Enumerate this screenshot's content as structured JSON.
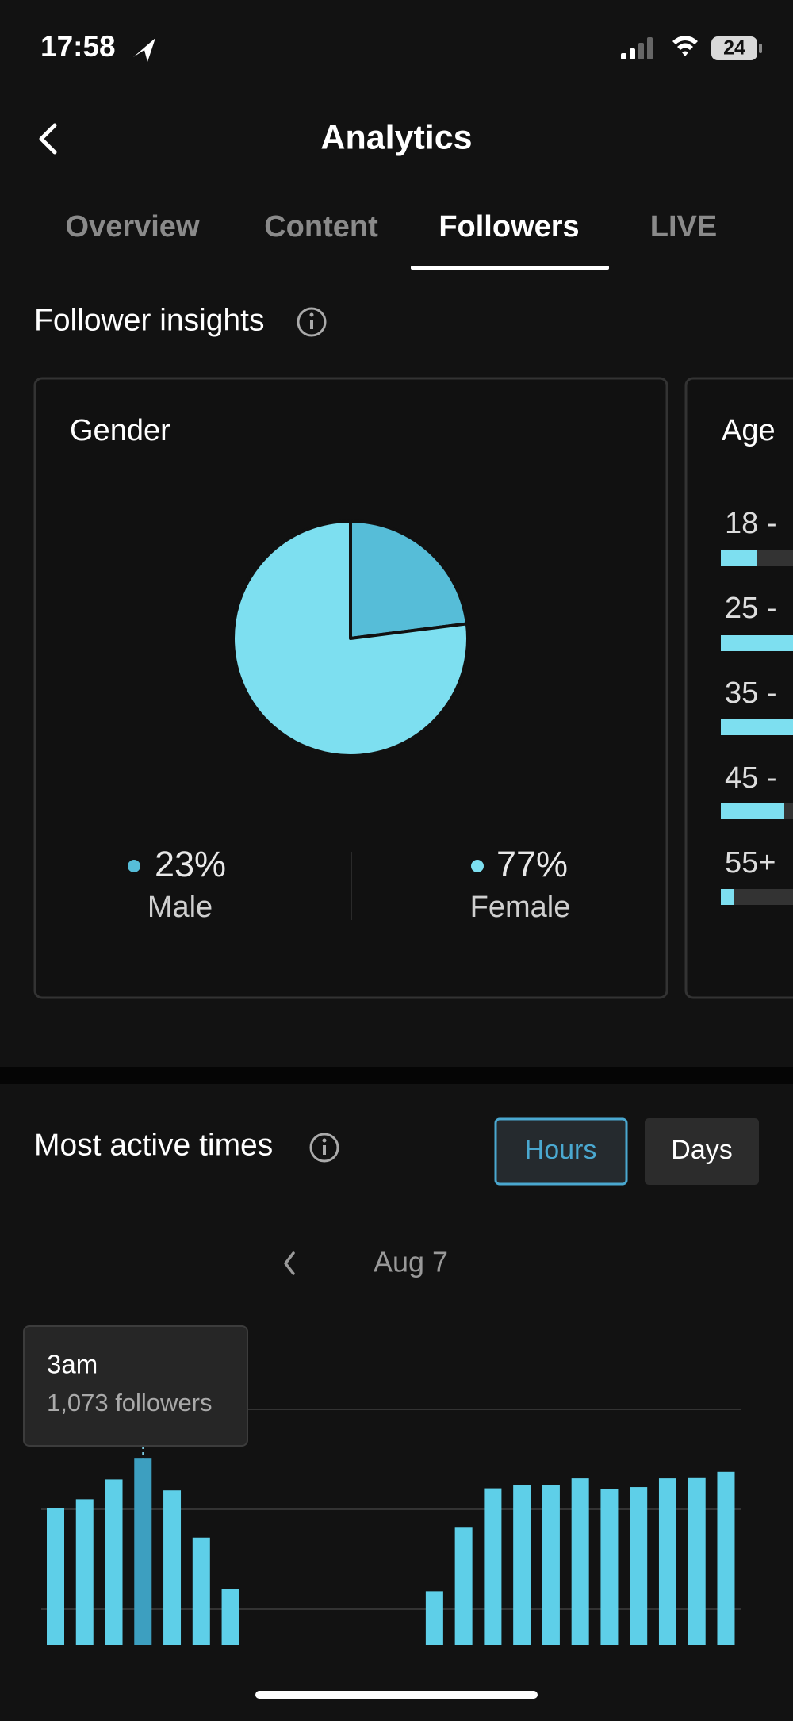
{
  "status_bar": {
    "time": "17:58",
    "battery": "24"
  },
  "header": {
    "title": "Analytics"
  },
  "tabs": [
    "Overview",
    "Content",
    "Followers",
    "LIVE"
  ],
  "insights_title": "Follower insights",
  "age": {
    "title": "Age",
    "labels": [
      "18 - ",
      "25 - ",
      "35 - ",
      "45 - ",
      "55+"
    ]
  },
  "active_title": "Most active times",
  "buttons": [
    "Hours",
    "Days"
  ],
  "date": "Aug 7",
  "chart_data": [
    {
      "type": "pie",
      "title": "Gender",
      "categories": [
        "Male",
        "Female"
      ],
      "values": [
        23,
        77
      ],
      "value_labels": [
        "23%",
        "77%"
      ],
      "colors": [
        "#56bdd8",
        "#7ddff0"
      ]
    },
    {
      "type": "bar",
      "categories": [
        null,
        null,
        null,
        null,
        null,
        null,
        null,
        null,
        null,
        null,
        null,
        null,
        null,
        null,
        null,
        null,
        null,
        null,
        null,
        null,
        null,
        null,
        null,
        null
      ],
      "values": [
        789,
        839,
        953,
        1073,
        890,
        618,
        322,
        null,
        null,
        null,
        null,
        null,
        null,
        309,
        675,
        902,
        921,
        921,
        959,
        896,
        909,
        959,
        965,
        997
      ],
      "ylim": [
        0,
        1357
      ],
      "color": "#5ecfe8",
      "highlight_color": "#3d9fc0",
      "highlight_index": 3,
      "tooltip": {
        "title": "3am",
        "text": "1,073 followers"
      }
    }
  ]
}
